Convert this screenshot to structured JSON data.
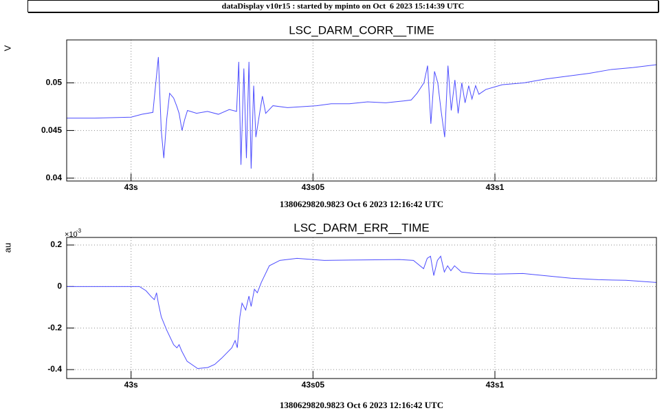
{
  "header": {
    "title": "dataDisplay v10r15 : started by mpinto on Oct  6 2023 15:14:39 UTC"
  },
  "chart_data": [
    {
      "type": "line",
      "title": "LSC_DARM_CORR__TIME",
      "ylabel": "V",
      "xlabel": "1380629820.9823 Oct 6 2023 12:16:42 UTC",
      "xlim": [
        42.9823,
        43.1444
      ],
      "ylim": [
        0.0397,
        0.0545
      ],
      "xticks": [
        {
          "value": 43,
          "label": "43s"
        },
        {
          "value": 43.05,
          "label": "43s05"
        },
        {
          "value": 43.1,
          "label": "43s1"
        }
      ],
      "yticks": [
        0.04,
        0.045,
        0.05
      ],
      "grid": true,
      "x": [
        42.9823,
        42.99,
        43.0,
        43.003,
        43.006,
        43.0075,
        43.0083,
        43.009,
        43.0098,
        43.0106,
        43.0117,
        43.0126,
        43.0132,
        43.014,
        43.0147,
        43.0155,
        43.018,
        43.021,
        43.024,
        43.027,
        43.029,
        43.0296,
        43.0302,
        43.031,
        43.0317,
        43.0324,
        43.033,
        43.0337,
        43.0343,
        43.0352,
        43.0361,
        43.037,
        43.039,
        43.043,
        43.047,
        43.051,
        43.055,
        43.06,
        43.065,
        43.07,
        43.075,
        43.077,
        43.0786,
        43.0805,
        43.0815,
        43.0824,
        43.0834,
        43.0843,
        43.0852,
        43.0862,
        43.0871,
        43.088,
        43.089,
        43.0899,
        43.0909,
        43.0918,
        43.0928,
        43.0937,
        43.0947,
        43.0956,
        43.0975,
        43.102,
        43.108,
        43.114,
        43.12,
        43.126,
        43.132,
        43.138,
        43.1444
      ],
      "series": [
        {
          "color": "#4b4bff",
          "values": [
            0.0463,
            0.0463,
            0.0464,
            0.0467,
            0.0469,
            0.0527,
            0.045,
            0.0421,
            0.0462,
            0.0489,
            0.0484,
            0.0475,
            0.0468,
            0.045,
            0.0461,
            0.0471,
            0.0468,
            0.047,
            0.0467,
            0.0472,
            0.047,
            0.0522,
            0.0414,
            0.0515,
            0.0421,
            0.0522,
            0.041,
            0.0497,
            0.0443,
            0.0465,
            0.0486,
            0.0468,
            0.0476,
            0.0474,
            0.0475,
            0.0476,
            0.0478,
            0.0478,
            0.048,
            0.0479,
            0.0481,
            0.0482,
            0.0489,
            0.05,
            0.0518,
            0.0457,
            0.0512,
            0.05,
            0.0471,
            0.0443,
            0.0518,
            0.0471,
            0.0503,
            0.0468,
            0.05,
            0.0479,
            0.0497,
            0.0483,
            0.0497,
            0.0488,
            0.0493,
            0.0498,
            0.05,
            0.0504,
            0.0507,
            0.051,
            0.0514,
            0.0516,
            0.0519
          ]
        }
      ]
    },
    {
      "type": "line",
      "title": "LSC_DARM_ERR__TIME",
      "ylabel": "au",
      "xlabel": "1380629820.9823 Oct 6 2023 12:16:42 UTC",
      "y_scale_label": "×10",
      "y_scale_exponent": "-3",
      "xlim": [
        42.9823,
        43.1444
      ],
      "ylim": [
        -0.443,
        0.2365
      ],
      "xticks": [
        {
          "value": 43,
          "label": "43s"
        },
        {
          "value": 43.05,
          "label": "43s05"
        },
        {
          "value": 43.1,
          "label": "43s1"
        }
      ],
      "yticks": [
        -0.4,
        -0.2,
        0,
        0.2
      ],
      "grid": true,
      "x": [
        42.9823,
        43.0023,
        43.0041,
        43.0056,
        43.0064,
        43.007,
        43.0075,
        43.0083,
        43.0098,
        43.0117,
        43.0126,
        43.0132,
        43.0139,
        43.0154,
        43.0183,
        43.0211,
        43.023,
        43.0249,
        43.0277,
        43.0286,
        43.0292,
        43.0299,
        43.0305,
        43.0315,
        43.0324,
        43.033,
        43.0339,
        43.0347,
        43.0358,
        43.038,
        43.0409,
        43.0456,
        43.0531,
        43.0625,
        43.0738,
        43.0776,
        43.0804,
        43.0814,
        43.0823,
        43.0832,
        43.0842,
        43.0851,
        43.0861,
        43.087,
        43.0879,
        43.0889,
        43.0908,
        43.0945,
        43.1002,
        43.1077,
        43.1134,
        43.1209,
        43.1284,
        43.136,
        43.1443
      ],
      "series": [
        {
          "color": "#4b4bff",
          "values": [
            0,
            0,
            -0.02,
            -0.05,
            -0.063,
            -0.03,
            -0.08,
            -0.146,
            -0.21,
            -0.28,
            -0.295,
            -0.28,
            -0.31,
            -0.36,
            -0.395,
            -0.39,
            -0.375,
            -0.345,
            -0.295,
            -0.26,
            -0.295,
            -0.146,
            -0.08,
            -0.113,
            -0.046,
            -0.096,
            -0.013,
            -0.03,
            0.02,
            0.1,
            0.126,
            0.136,
            0.126,
            0.128,
            0.13,
            0.126,
            0.086,
            0.136,
            0.146,
            0.053,
            0.126,
            0.146,
            0.07,
            0.1,
            0.076,
            0.1,
            0.07,
            0.063,
            0.06,
            0.063,
            0.053,
            0.04,
            0.033,
            0.03,
            0.02
          ]
        }
      ]
    }
  ]
}
